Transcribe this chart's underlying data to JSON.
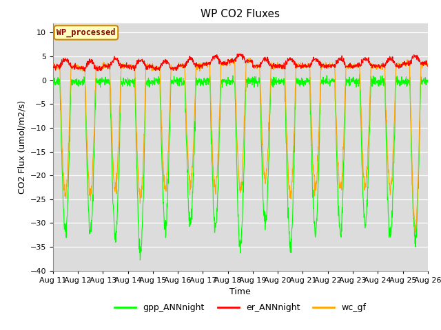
{
  "title": "WP CO2 Fluxes",
  "xlabel": "Time",
  "ylabel": "CO2 Flux (umol/m2/s)",
  "ylim": [
    -40,
    12
  ],
  "yticks": [
    -40,
    -35,
    -30,
    -25,
    -20,
    -15,
    -10,
    -5,
    0,
    5,
    10
  ],
  "x_tick_labels": [
    "Aug 11",
    "Aug 12",
    "Aug 13",
    "Aug 14",
    "Aug 15",
    "Aug 16",
    "Aug 17",
    "Aug 18",
    "Aug 19",
    "Aug 20",
    "Aug 21",
    "Aug 22",
    "Aug 23",
    "Aug 24",
    "Aug 25",
    "Aug 26"
  ],
  "n_days": 15,
  "points_per_day": 96,
  "gpp_color": "#00FF00",
  "er_color": "#FF0000",
  "wc_color": "#FFA500",
  "background_color": "#DCDCDC",
  "legend_box_facecolor": "#FFFFC0",
  "legend_box_edgecolor": "#CC8800",
  "legend_label_color": "#880000",
  "legend_text": "WP_processed",
  "series_labels": [
    "gpp_ANNnight",
    "er_ANNnight",
    "wc_gf"
  ],
  "title_fontsize": 11,
  "axis_label_fontsize": 9,
  "tick_fontsize": 8,
  "line_width": 0.8,
  "gpp_day_amp_base": 32,
  "er_base": 2.5,
  "wc_day_amp_base": 26
}
